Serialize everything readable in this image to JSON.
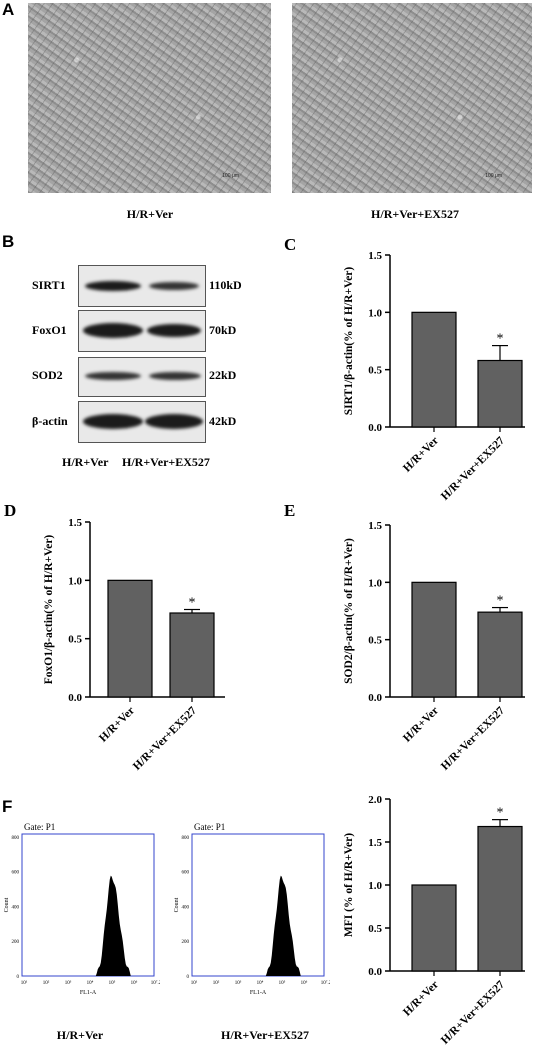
{
  "panels": {
    "A": {
      "letter": "A",
      "captions": [
        "H/R+Ver",
        "H/R+Ver+EX527"
      ],
      "scale_bar": "100 μm"
    },
    "B": {
      "letter": "B",
      "proteins": [
        {
          "name": "SIRT1",
          "kd": "110kD"
        },
        {
          "name": "FoxO1",
          "kd": "70kD"
        },
        {
          "name": "SOD2",
          "kd": "22kD"
        },
        {
          "name": "β-actin",
          "kd": "42kD"
        }
      ],
      "lanes": [
        "H/R+Ver",
        "H/R+Ver+EX527"
      ]
    },
    "F": {
      "letter": "F",
      "captions": [
        "H/R+Ver",
        "H/R+Ver+EX527"
      ],
      "histogram": {
        "gate": "Gate: P1",
        "ylabel": "Count",
        "xlabel": "FL1-A",
        "yticks": [
          "0",
          "200",
          "400",
          "600",
          "800"
        ],
        "xticks": [
          "10¹",
          "10²",
          "10³",
          "10⁴",
          "10⁵",
          "10⁶",
          "10⁷.2"
        ]
      }
    }
  },
  "chart_data": [
    {
      "id": "C",
      "letter": "C",
      "type": "bar",
      "categories": [
        "H/R+Ver",
        "H/R+Ver+EX527"
      ],
      "values": [
        1.0,
        0.58
      ],
      "errors": [
        0,
        0.13
      ],
      "significance": [
        "",
        "*"
      ],
      "ylabel": "SIRT1/β-actin(% of H/R+Ver)",
      "ylim": [
        0,
        1.5
      ],
      "yticks": [
        "0.0",
        "0.5",
        "1.0",
        "1.5"
      ],
      "bar_color": "#616161"
    },
    {
      "id": "D",
      "letter": "D",
      "type": "bar",
      "categories": [
        "H/R+Ver",
        "H/R+Ver+EX527"
      ],
      "values": [
        1.0,
        0.72
      ],
      "errors": [
        0,
        0.03
      ],
      "significance": [
        "",
        "*"
      ],
      "ylabel": "FoxO1/β-actin(% of H/R+Ver)",
      "ylim": [
        0,
        1.5
      ],
      "yticks": [
        "0.0",
        "0.5",
        "1.0",
        "1.5"
      ],
      "bar_color": "#616161"
    },
    {
      "id": "E",
      "letter": "E",
      "type": "bar",
      "categories": [
        "H/R+Ver",
        "H/R+Ver+EX527"
      ],
      "values": [
        1.0,
        0.74
      ],
      "errors": [
        0,
        0.04
      ],
      "significance": [
        "",
        "*"
      ],
      "ylabel": "SOD2/β-actin(% of H/R+Ver)",
      "ylim": [
        0,
        1.5
      ],
      "yticks": [
        "0.0",
        "0.5",
        "1.0",
        "1.5"
      ],
      "bar_color": "#616161"
    },
    {
      "id": "F2",
      "letter": "",
      "type": "bar",
      "categories": [
        "H/R+Ver",
        "H/R+Ver+EX527"
      ],
      "values": [
        1.0,
        1.68
      ],
      "errors": [
        0,
        0.08
      ],
      "significance": [
        "",
        "*"
      ],
      "ylabel": "MFI (% of H/R+Ver)",
      "ylim": [
        0,
        2.0
      ],
      "yticks": [
        "0.0",
        "0.5",
        "1.0",
        "1.5",
        "2.0"
      ],
      "bar_color": "#616161"
    }
  ]
}
